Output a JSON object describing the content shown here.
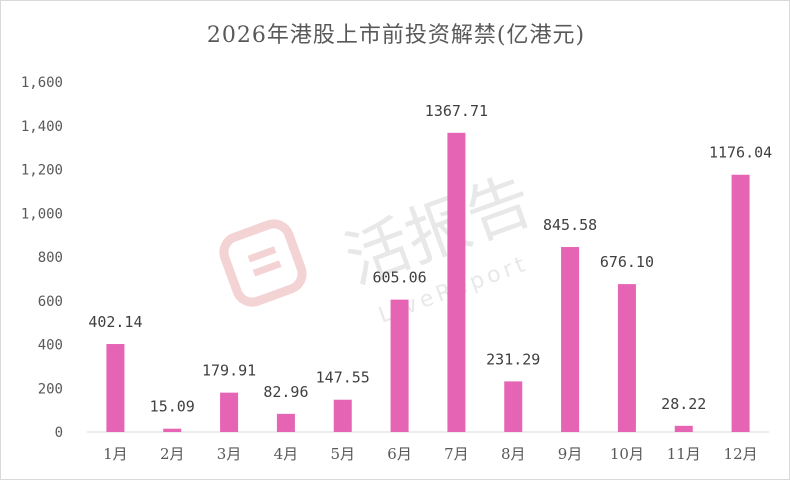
{
  "watermark": {
    "text": "活报告",
    "subtext": "LiveReport"
  },
  "chart_data": {
    "type": "bar",
    "title": "2026年港股上市前投资解禁(亿港元)",
    "xlabel": "",
    "ylabel": "",
    "categories": [
      "1月",
      "2月",
      "3月",
      "4月",
      "5月",
      "6月",
      "7月",
      "8月",
      "9月",
      "10月",
      "11月",
      "12月"
    ],
    "values": [
      402.14,
      15.09,
      179.91,
      82.96,
      147.55,
      605.06,
      1367.71,
      231.29,
      845.58,
      676.1,
      28.22,
      1176.04
    ],
    "value_labels": [
      "402.14",
      "15.09",
      "179.91",
      "82.96",
      "147.55",
      "605.06",
      "1367.71",
      "231.29",
      "845.58",
      "676.10",
      "28.22",
      "1176.04"
    ],
    "ylim": [
      0,
      1600
    ],
    "yticks": [
      0,
      200,
      400,
      600,
      800,
      1000,
      1200,
      1400,
      1600
    ],
    "ytick_labels": [
      "0",
      "200",
      "400",
      "600",
      "800",
      "1,000",
      "1,200",
      "1,400",
      "1,600"
    ],
    "grid": false,
    "legend": "none",
    "bar_color": "#e564b4"
  }
}
